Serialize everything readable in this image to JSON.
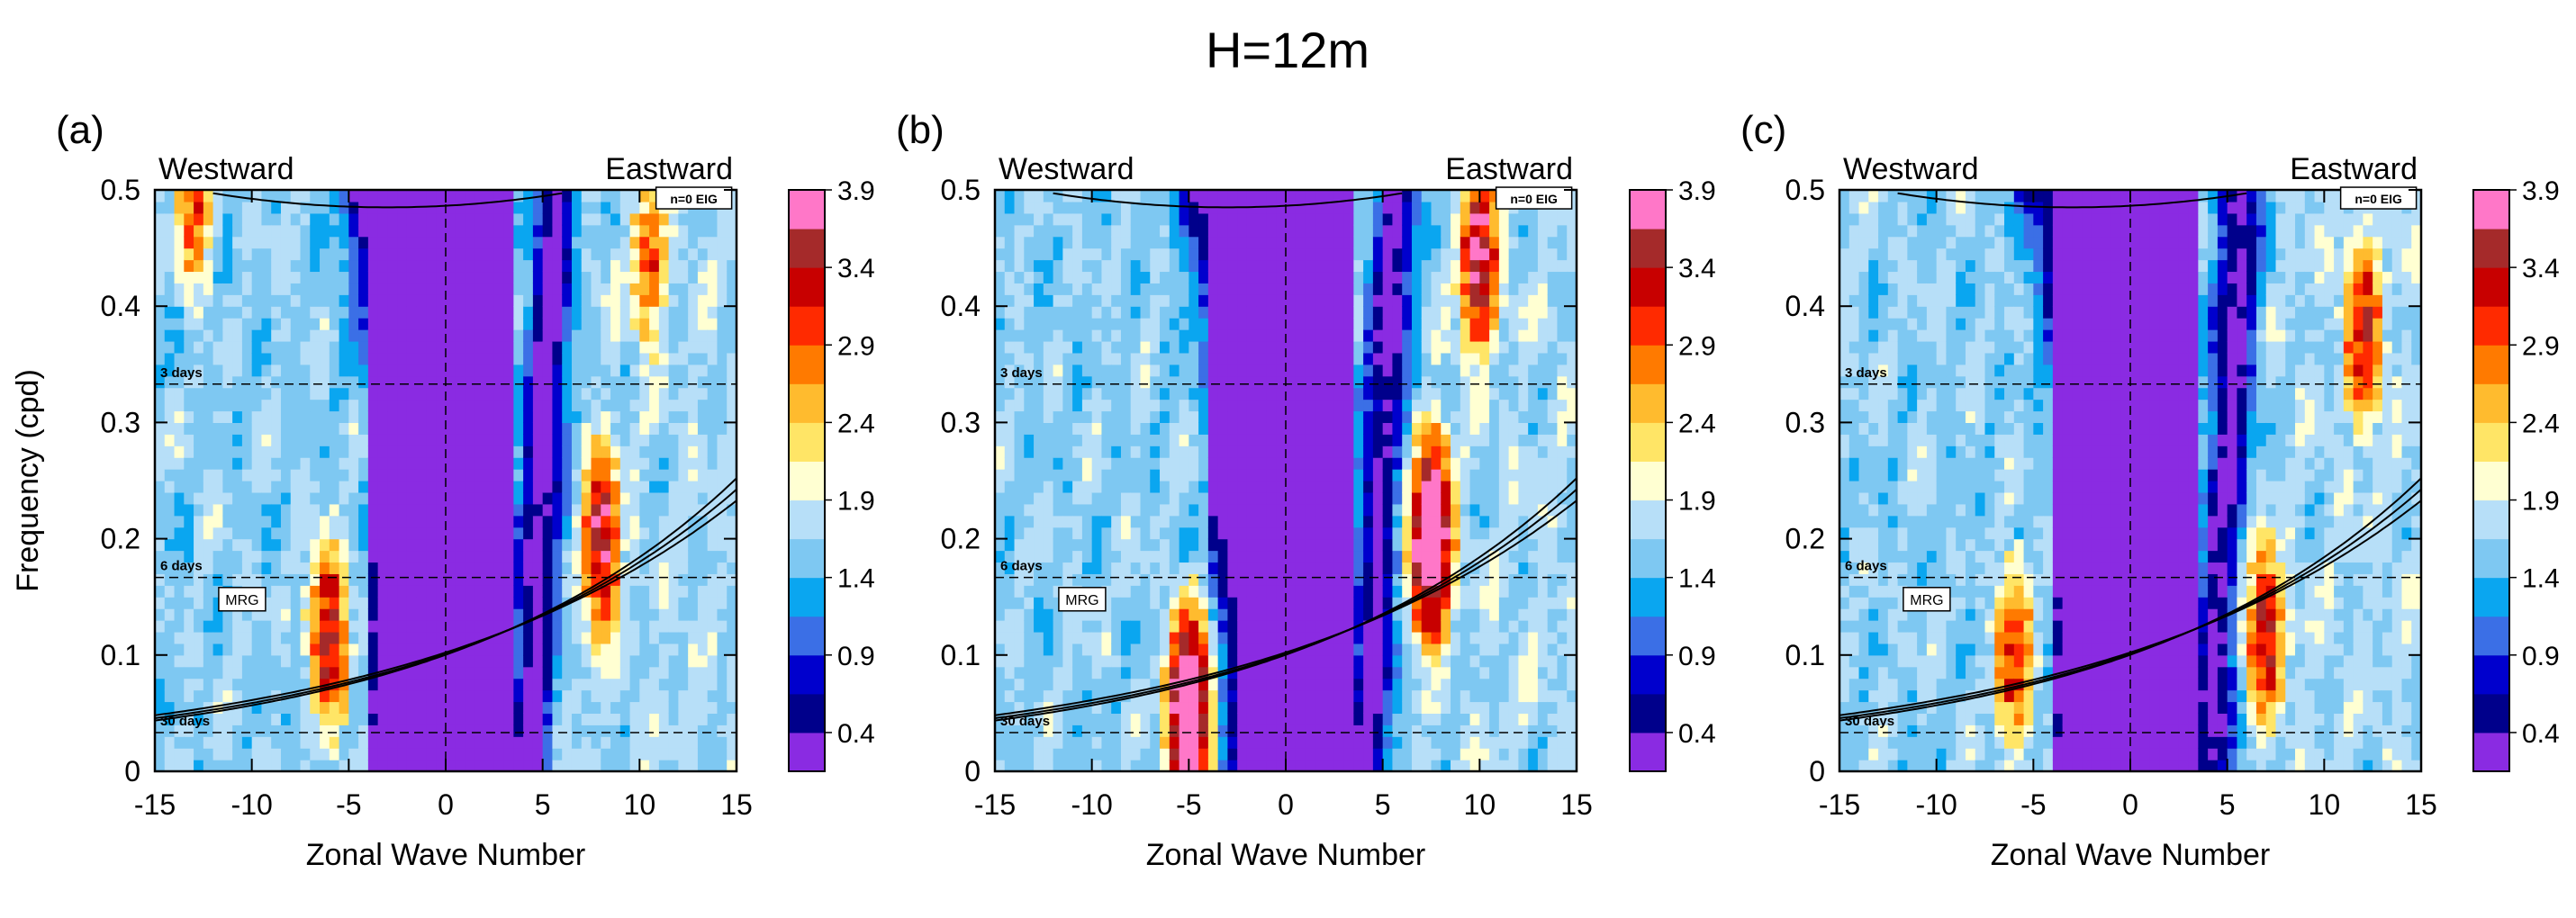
{
  "figure": {
    "title": "H=12m"
  },
  "colorbar": {
    "labels": [
      "0.4",
      "0.9",
      "1.4",
      "1.9",
      "2.4",
      "2.9",
      "3.4",
      "3.9"
    ],
    "colors": [
      "#8a2be2",
      "#00008b",
      "#0000cd",
      "#3b6fe6",
      "#0aa6f0",
      "#7ec8f2",
      "#b7dff8",
      "#ffffd2",
      "#ffe566",
      "#ffbb2e",
      "#ff7a00",
      "#ff2a00",
      "#c80000",
      "#a52a2a",
      "#ff77c8"
    ]
  },
  "chart_data": [
    {
      "type": "heatmap",
      "panel_label": "(a)",
      "westward_label": "Westward",
      "eastward_label": "Eastward",
      "xlabel": "Zonal Wave Number",
      "ylabel": "Frequency (cpd)",
      "xlim": [
        -15,
        15
      ],
      "ylim": [
        0,
        0.5
      ],
      "xticks": [
        "-15",
        "-10",
        "-5",
        "0",
        "5",
        "10",
        "15"
      ],
      "yticks": [
        "0",
        "0.1",
        "0.2",
        "0.3",
        "0.4",
        "0.5"
      ],
      "period_lines": [
        {
          "label": "3 days",
          "freq": 0.333
        },
        {
          "label": "6 days",
          "freq": 0.1667
        },
        {
          "label": "30 days",
          "freq": 0.0333
        }
      ],
      "dispersion_labels": {
        "mrg": "MRG",
        "eig": "n=0 EIG"
      },
      "features": [
        {
          "k": -6,
          "f": 0.12,
          "amp": 3.0
        },
        {
          "k": -13,
          "f": 0.49,
          "amp": 2.6
        },
        {
          "k": 8,
          "f": 0.2,
          "amp": 3.2
        },
        {
          "k": 10.5,
          "f": 0.44,
          "amp": 2.5
        }
      ]
    },
    {
      "type": "heatmap",
      "panel_label": "(b)",
      "westward_label": "Westward",
      "eastward_label": "Eastward",
      "xlabel": "Zonal Wave Number",
      "ylabel": "",
      "xlim": [
        -15,
        15
      ],
      "ylim": [
        0,
        0.5
      ],
      "xticks": [
        "-15",
        "-10",
        "-5",
        "0",
        "5",
        "10",
        "15"
      ],
      "yticks": [
        "0",
        "0.1",
        "0.2",
        "0.3",
        "0.4",
        "0.5"
      ],
      "period_lines": [
        {
          "label": "3 days",
          "freq": 0.333
        },
        {
          "label": "6 days",
          "freq": 0.1667
        },
        {
          "label": "30 days",
          "freq": 0.0333
        }
      ],
      "dispersion_labels": {
        "mrg": "MRG",
        "eig": "n=0 EIG"
      },
      "features": [
        {
          "k": -5,
          "f": 0.05,
          "amp": 4.0
        },
        {
          "k": 7.5,
          "f": 0.2,
          "amp": 4.0
        },
        {
          "k": 10,
          "f": 0.44,
          "amp": 3.3
        }
      ]
    },
    {
      "type": "heatmap",
      "panel_label": "(c)",
      "westward_label": "Westward",
      "eastward_label": "Eastward",
      "xlabel": "Zonal Wave Number",
      "ylabel": "",
      "xlim": [
        -15,
        15
      ],
      "ylim": [
        0,
        0.5
      ],
      "xticks": [
        "-15",
        "-10",
        "-5",
        "0",
        "5",
        "10",
        "15"
      ],
      "yticks": [
        "0",
        "0.1",
        "0.2",
        "0.3",
        "0.4",
        "0.5"
      ],
      "period_lines": [
        {
          "label": "3 days",
          "freq": 0.333
        },
        {
          "label": "6 days",
          "freq": 0.1667
        },
        {
          "label": "30 days",
          "freq": 0.0333
        }
      ],
      "dispersion_labels": {
        "mrg": "MRG",
        "eig": "n=0 EIG"
      },
      "features": [
        {
          "k": -6,
          "f": 0.1,
          "amp": 2.8
        },
        {
          "k": 7,
          "f": 0.12,
          "amp": 3.0
        },
        {
          "k": 12,
          "f": 0.38,
          "amp": 3.0
        }
      ]
    }
  ]
}
